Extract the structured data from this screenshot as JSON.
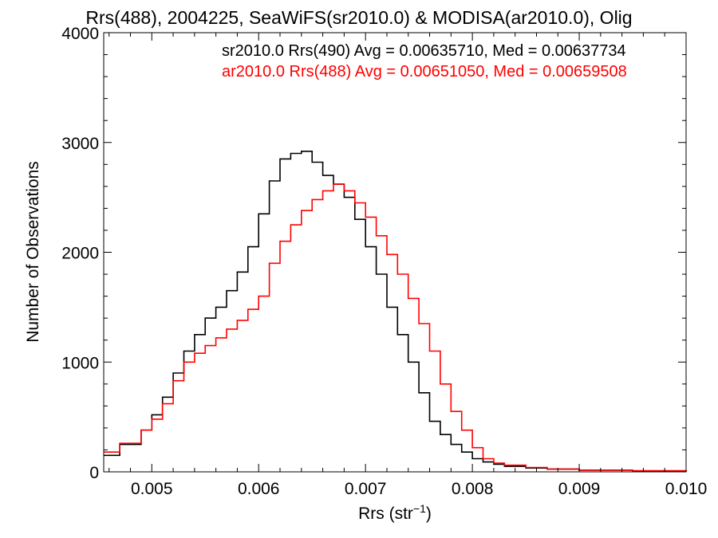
{
  "chart_data": {
    "type": "line",
    "title": "Rrs(488), 2004225, SeaWiFS(sr2010.0) & MODISA(ar2010.0), Olig",
    "xlabel": "Rrs (str",
    "xlabel_sup": "−1",
    "xlabel_close": ")",
    "ylabel": "Number of Observations",
    "xlim": [
      0.00455,
      0.01
    ],
    "ylim": [
      0,
      4000
    ],
    "x_ticks": [
      {
        "value": 0.005,
        "label": "0.005"
      },
      {
        "value": 0.006,
        "label": "0.006"
      },
      {
        "value": 0.007,
        "label": "0.007"
      },
      {
        "value": 0.008,
        "label": "0.008"
      },
      {
        "value": 0.009,
        "label": "0.009"
      },
      {
        "value": 0.01,
        "label": "0.010"
      }
    ],
    "y_ticks": [
      {
        "value": 0,
        "label": "0"
      },
      {
        "value": 1000,
        "label": "1000"
      },
      {
        "value": 2000,
        "label": "2000"
      },
      {
        "value": 3000,
        "label": "3000"
      },
      {
        "value": 4000,
        "label": "4000"
      }
    ],
    "grid": false,
    "legend_position": "top-right",
    "series": [
      {
        "name": "sr2010.0 Rrs(490) Avg = 0.00635710, Med = 0.00637734",
        "color": "#000000",
        "x": [
          0.00455,
          0.0047,
          0.0049,
          0.005,
          0.0051,
          0.0052,
          0.0053,
          0.0054,
          0.0055,
          0.0056,
          0.0057,
          0.0058,
          0.0059,
          0.006,
          0.0061,
          0.0062,
          0.0063,
          0.0064,
          0.0065,
          0.0066,
          0.0067,
          0.0068,
          0.0069,
          0.007,
          0.0071,
          0.0072,
          0.0073,
          0.0074,
          0.0075,
          0.0076,
          0.0077,
          0.0078,
          0.0079,
          0.008,
          0.0081,
          0.0082,
          0.0083,
          0.0085,
          0.0087,
          0.009,
          0.0095,
          0.01
        ],
        "y": [
          150,
          250,
          380,
          520,
          680,
          900,
          1100,
          1250,
          1400,
          1500,
          1650,
          1820,
          2050,
          2350,
          2650,
          2850,
          2900,
          2920,
          2820,
          2700,
          2620,
          2500,
          2300,
          2050,
          1800,
          1500,
          1250,
          1000,
          720,
          460,
          340,
          250,
          180,
          120,
          90,
          70,
          50,
          35,
          25,
          15,
          8,
          5
        ]
      },
      {
        "name": "ar2010.0 Rrs(488) Avg = 0.00651050, Med = 0.00659508",
        "color": "#ff0000",
        "x": [
          0.00455,
          0.0047,
          0.0049,
          0.005,
          0.0051,
          0.0052,
          0.0053,
          0.0054,
          0.0055,
          0.0056,
          0.0057,
          0.0058,
          0.0059,
          0.006,
          0.0061,
          0.0062,
          0.0063,
          0.0064,
          0.0065,
          0.0066,
          0.0067,
          0.0068,
          0.0069,
          0.007,
          0.0071,
          0.0072,
          0.0073,
          0.0074,
          0.0075,
          0.0076,
          0.0077,
          0.0078,
          0.0079,
          0.008,
          0.0081,
          0.0082,
          0.0083,
          0.0085,
          0.0087,
          0.009,
          0.0095,
          0.01
        ],
        "y": [
          180,
          260,
          380,
          480,
          620,
          830,
          1000,
          1080,
          1150,
          1220,
          1300,
          1380,
          1480,
          1600,
          1900,
          2100,
          2250,
          2380,
          2480,
          2560,
          2620,
          2560,
          2450,
          2320,
          2150,
          1980,
          1800,
          1580,
          1350,
          1100,
          800,
          550,
          380,
          220,
          120,
          80,
          60,
          40,
          25,
          15,
          10,
          5
        ]
      }
    ]
  }
}
